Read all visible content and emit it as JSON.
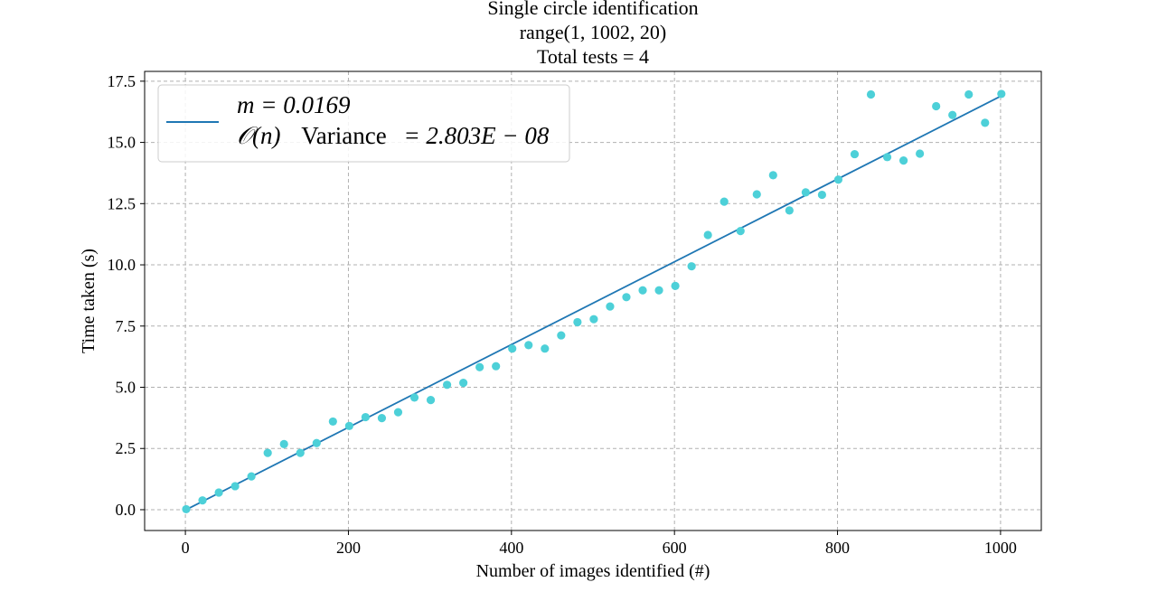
{
  "chart_data": {
    "type": "scatter",
    "title_lines": [
      "Single circle identification",
      "range(1, 1002, 20)",
      "Total tests = 4"
    ],
    "xlabel": "Number of images identified (#)",
    "ylabel": "Time taken (s)",
    "xlim": [
      -50,
      1050
    ],
    "ylim": [
      -0.85,
      17.9
    ],
    "xticks": [
      0,
      200,
      400,
      600,
      800,
      1000
    ],
    "yticks": [
      0.0,
      2.5,
      5.0,
      7.5,
      10.0,
      12.5,
      15.0,
      17.5
    ],
    "xtick_labels": [
      "0",
      "200",
      "400",
      "600",
      "800",
      "1000"
    ],
    "ytick_labels": [
      "0.0",
      "2.5",
      "5.0",
      "7.5",
      "10.0",
      "12.5",
      "15.0",
      "17.5"
    ],
    "grid": true,
    "legend": {
      "placement": "top-left",
      "line1": "m = 0.0169",
      "line2_prefix": "𝒪(n)",
      "line2_word": "Variance",
      "line2_suffix": "= 2.803E − 08"
    },
    "colors": {
      "points": "#4dd0d8",
      "fit_line": "#1f77b4",
      "grid": "#b0b0b0"
    },
    "series": [
      {
        "kind": "scatter",
        "x": [
          1,
          21,
          41,
          61,
          81,
          101,
          121,
          141,
          161,
          181,
          201,
          221,
          241,
          261,
          281,
          301,
          321,
          341,
          361,
          381,
          401,
          421,
          441,
          461,
          481,
          501,
          521,
          541,
          561,
          581,
          601,
          621,
          641,
          661,
          681,
          701,
          721,
          741,
          761,
          781,
          801,
          821,
          841,
          861,
          881,
          901,
          921,
          941,
          961,
          981,
          1001
        ],
        "y": [
          0.02,
          0.38,
          0.7,
          0.96,
          1.36,
          2.32,
          2.68,
          2.32,
          2.72,
          3.6,
          3.42,
          3.78,
          3.74,
          3.98,
          4.58,
          4.48,
          5.1,
          5.18,
          5.82,
          5.86,
          6.58,
          6.72,
          6.58,
          7.12,
          7.66,
          7.78,
          8.3,
          8.68,
          8.96,
          8.96,
          9.14,
          9.94,
          11.22,
          12.58,
          11.38,
          12.88,
          13.66,
          12.22,
          12.96,
          12.86,
          13.48,
          14.52,
          16.96,
          14.4,
          14.26,
          14.54,
          16.48,
          16.12,
          16.96,
          15.8,
          16.98
        ]
      },
      {
        "kind": "line",
        "x": [
          1,
          1001
        ],
        "y": [
          0.0,
          16.9
        ]
      }
    ]
  }
}
